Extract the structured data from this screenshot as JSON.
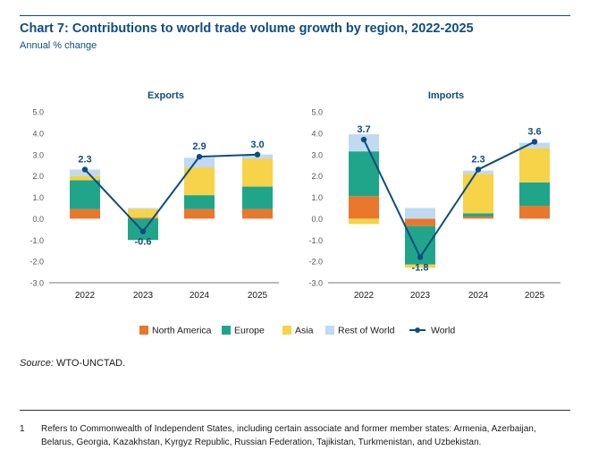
{
  "header": {
    "title": "Chart 7: Contributions to world trade volume growth by region, 2022-2025",
    "subtitle": "Annual % change"
  },
  "chart_data": {
    "type": "bar",
    "ylim": [
      -3.0,
      5.0
    ],
    "yticks": [
      "5.0",
      "4.0",
      "3.0",
      "2.0",
      "1.0",
      "0.0",
      "-1.0",
      "-2.0",
      "-3.0"
    ],
    "categories": [
      "2022",
      "2023",
      "2024",
      "2025"
    ],
    "legend_position": "bottom",
    "legend": [
      {
        "name": "North America",
        "color": "#e9772c",
        "kind": "bar"
      },
      {
        "name": "Europe",
        "color": "#21a58a",
        "kind": "bar"
      },
      {
        "name": "Asia",
        "color": "#f6d348",
        "kind": "bar"
      },
      {
        "name": "Rest of World",
        "color": "#bfdaf1",
        "kind": "bar"
      },
      {
        "name": "World",
        "color": "#0f4c81",
        "kind": "line"
      }
    ],
    "panels": [
      {
        "title": "Exports",
        "series": [
          {
            "name": "North America",
            "values": [
              0.45,
              0.05,
              0.45,
              0.45
            ]
          },
          {
            "name": "Europe",
            "values": [
              1.35,
              -1.0,
              0.65,
              1.05
            ]
          },
          {
            "name": "Asia",
            "values": [
              0.2,
              0.4,
              1.3,
              1.3
            ]
          },
          {
            "name": "Rest of World",
            "values": [
              0.3,
              0.05,
              0.45,
              0.2
            ]
          }
        ],
        "world": [
          2.3,
          -0.6,
          2.9,
          3.0
        ],
        "world_labels": [
          "2.3",
          "-0.6",
          "2.9",
          "3.0"
        ]
      },
      {
        "title": "Imports",
        "series": [
          {
            "name": "North America",
            "values": [
              1.05,
              -0.35,
              0.1,
              0.6
            ]
          },
          {
            "name": "Europe",
            "values": [
              2.1,
              -1.8,
              0.15,
              1.1
            ]
          },
          {
            "name": "Asia",
            "values": [
              -0.25,
              -0.15,
              1.85,
              1.6
            ]
          },
          {
            "name": "Rest of World",
            "values": [
              0.8,
              0.5,
              0.15,
              0.25
            ]
          }
        ],
        "world": [
          3.7,
          -1.8,
          2.3,
          3.6
        ],
        "world_labels": [
          "3.7",
          "-1.8",
          "2.3",
          "3.6"
        ]
      }
    ]
  },
  "source": {
    "label": "Source:",
    "text": " WTO-UNCTAD."
  },
  "footnote": {
    "number": "1",
    "text": "Refers to Commonwealth of Independent States, including certain associate and former member states: Armenia, Azerbaijan, Belarus, Georgia, Kazakhstan, Kyrgyz Republic, Russian Federation, Tajikistan, Turkmenistan, and Uzbekistan."
  }
}
